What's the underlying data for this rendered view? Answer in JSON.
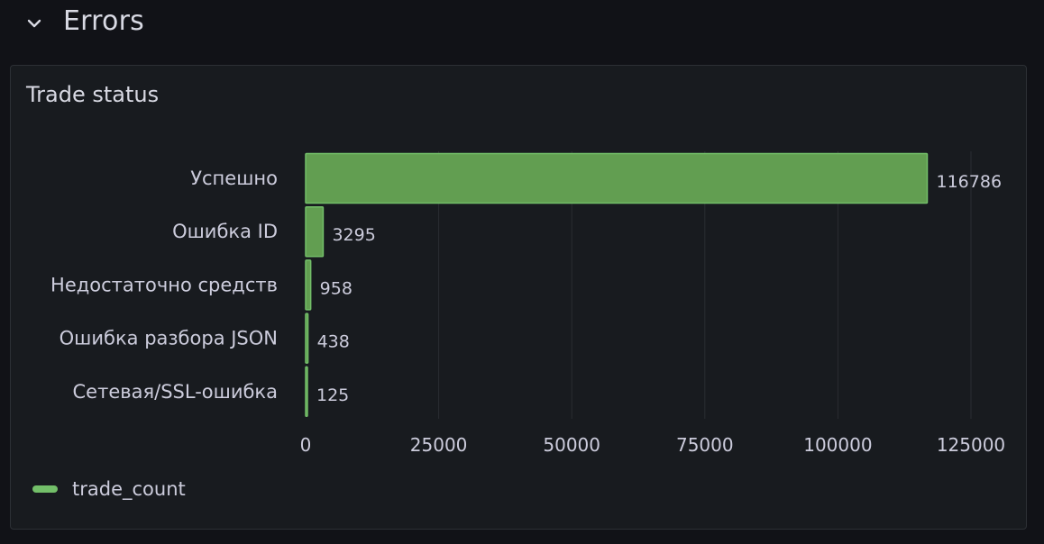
{
  "row": {
    "title": "Errors"
  },
  "panel": {
    "title": "Trade status"
  },
  "colors": {
    "background": "#111217",
    "panel": "#181b1f",
    "bar_fill": "#629e51",
    "bar_stroke": "#73bf69",
    "grid": "#2a2d33",
    "text": "#ccccdc"
  },
  "icons": {
    "collapse": "chevron-down-icon"
  },
  "chart_data": {
    "type": "bar",
    "orientation": "horizontal",
    "title": "Trade status",
    "categories": [
      "Успешно",
      "Ошибка ID",
      "Недостаточно средств",
      "Ошибка разбора JSON",
      "Сетевая/SSL-ошибка"
    ],
    "series": [
      {
        "name": "trade_count",
        "values": [
          116786,
          3295,
          958,
          438,
          125
        ]
      }
    ],
    "xlim": [
      0,
      125000
    ],
    "x_ticks": [
      "0",
      "25000",
      "50000",
      "75000",
      "100000",
      "125000"
    ],
    "value_labels": [
      "116786",
      "3295",
      "958",
      "438",
      "125"
    ],
    "grid": true,
    "legend": "bottom-left"
  }
}
